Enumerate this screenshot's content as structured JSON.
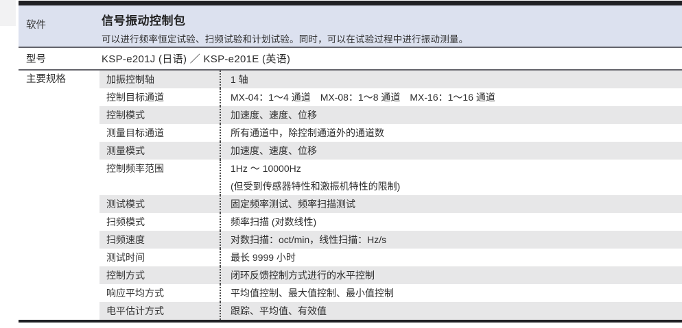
{
  "colors": {
    "header_bg": "#dce1ef",
    "row_alt_bg": "#e7e7e8",
    "bar": "#202024",
    "divider": "#63636a",
    "text": "#333333"
  },
  "sections": {
    "software": {
      "label": "软件",
      "title": "信号振动控制包",
      "description": "可以进行频率恒定试验、扫频试验和计划试验。同时，可以在试验过程中进行振动测量。"
    },
    "model": {
      "label": "型号",
      "value": "KSP-e201J (日语) ／ KSP-e201E (英语)"
    },
    "specs": {
      "label": "主要规格",
      "rows": [
        {
          "label": "加振控制轴",
          "value": "1 轴"
        },
        {
          "label": "控制目标通道",
          "value": "MX-04：1～4 通道　MX-08：1～8 通道　MX-16：1～16 通道"
        },
        {
          "label": "控制模式",
          "value": "加速度、速度、位移"
        },
        {
          "label": "测量目标通道",
          "value": "所有通道中，除控制通道外的通道数"
        },
        {
          "label": "测量模式",
          "value": "加速度、速度、位移"
        },
        {
          "label": "控制频率范围",
          "value": "1Hz ～ 10000Hz",
          "value2": "(但受到传感器特性和激振机特性的限制)"
        },
        {
          "label": "测试模式",
          "value": "固定频率测试、频率扫描测试"
        },
        {
          "label": "扫频模式",
          "value": "频率扫描 (对数线性)"
        },
        {
          "label": "扫频速度",
          "value": "对数扫描：oct/min，线性扫描：Hz/s"
        },
        {
          "label": "测试时间",
          "value": "最长 9999 小时"
        },
        {
          "label": "控制方式",
          "value": "闭环反馈控制方式进行的水平控制"
        },
        {
          "label": "响应平均方式",
          "value": "平均值控制、最大值控制、最小值控制"
        },
        {
          "label": "电平估计方式",
          "value": "跟踪、平均值、有效值"
        }
      ]
    }
  }
}
